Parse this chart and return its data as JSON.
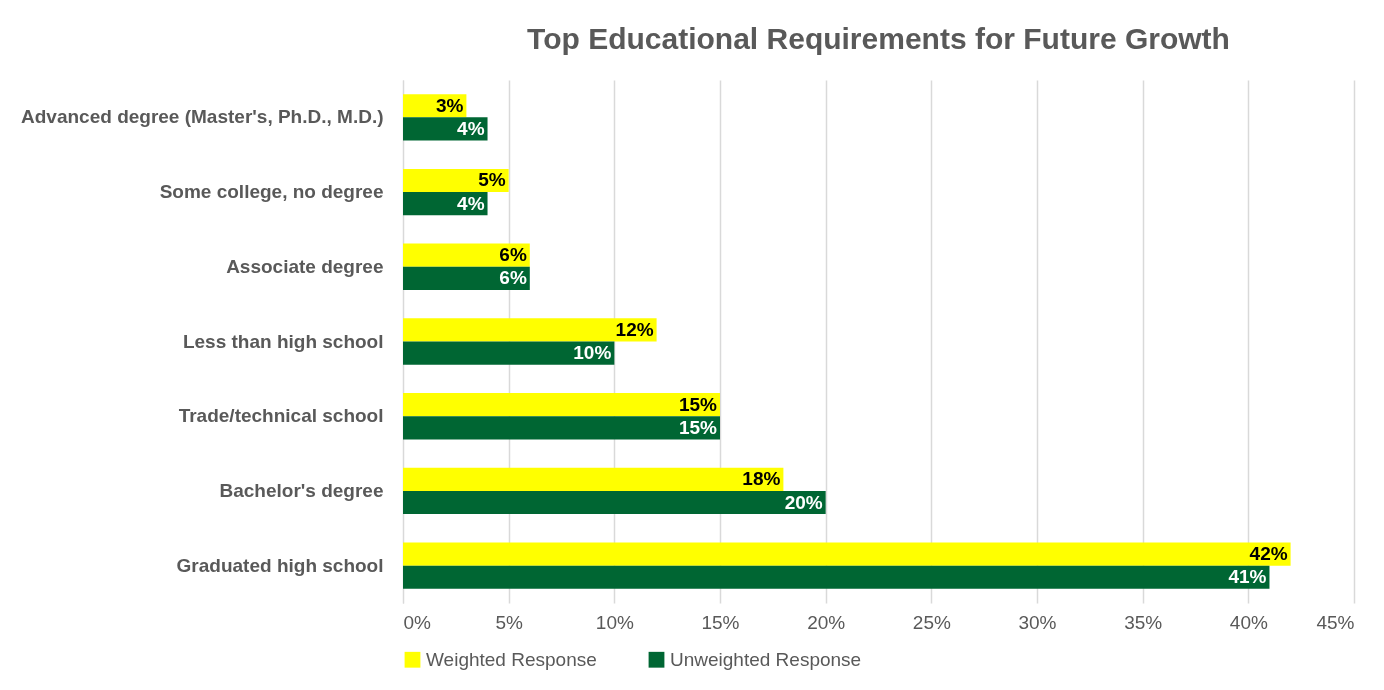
{
  "chart_data": {
    "type": "bar",
    "orientation": "horizontal",
    "title": "Top Educational Requirements for Future Growth",
    "categories": [
      "Advanced degree (Master's, Ph.D., M.D.)",
      "Some college, no degree",
      "Associate degree",
      "Less than high school",
      "Trade/technical school",
      "Bachelor's degree",
      "Graduated high school"
    ],
    "series": [
      {
        "name": "Weighted Response",
        "color": "#ffff00",
        "values": [
          3,
          5,
          6,
          12,
          15,
          18,
          42
        ],
        "value_labels": [
          "3%",
          "5%",
          "6%",
          "12%",
          "15%",
          "18%",
          "42%"
        ]
      },
      {
        "name": "Unweighted Response",
        "color": "#006633",
        "values": [
          4,
          4,
          6,
          10,
          15,
          20,
          41
        ],
        "value_labels": [
          "4%",
          "4%",
          "6%",
          "10%",
          "15%",
          "20%",
          "41%"
        ]
      }
    ],
    "xlim": [
      0,
      45
    ],
    "xticks": [
      {
        "value": 0,
        "label": "0%"
      },
      {
        "value": 5,
        "label": "5%"
      },
      {
        "value": 10,
        "label": "10%"
      },
      {
        "value": 15,
        "label": "15%"
      },
      {
        "value": 20,
        "label": "20%"
      },
      {
        "value": 25,
        "label": "25%"
      },
      {
        "value": 30,
        "label": "30%"
      },
      {
        "value": 35,
        "label": "35%"
      },
      {
        "value": 40,
        "label": "40%"
      },
      {
        "value": 45,
        "label": "45%"
      }
    ],
    "grid": "x",
    "legend": "bottom"
  }
}
